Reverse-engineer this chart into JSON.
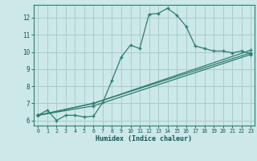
{
  "xlabel": "Humidex (Indice chaleur)",
  "bg_color": "#cce8e8",
  "grid_color": "#aacccc",
  "line_color": "#2e7d6e",
  "xlim": [
    -0.5,
    23.4
  ],
  "ylim": [
    5.7,
    12.75
  ],
  "xticks": [
    0,
    1,
    2,
    3,
    4,
    5,
    6,
    7,
    8,
    9,
    10,
    11,
    12,
    13,
    14,
    15,
    16,
    17,
    18,
    19,
    20,
    21,
    22,
    23
  ],
  "yticks": [
    6,
    7,
    8,
    9,
    10,
    11,
    12
  ],
  "series": [
    {
      "x": [
        0,
        1,
        2,
        3,
        4,
        5,
        6,
        7,
        8,
        9,
        10,
        11,
        12,
        13,
        14,
        15,
        16,
        17,
        18,
        19,
        20,
        21,
        22,
        23
      ],
      "y": [
        6.3,
        6.6,
        6.0,
        6.3,
        6.3,
        6.2,
        6.25,
        7.05,
        8.35,
        9.7,
        10.4,
        10.2,
        12.2,
        12.25,
        12.55,
        12.15,
        11.5,
        10.35,
        10.2,
        10.05,
        10.05,
        9.95,
        10.05,
        9.9
      ]
    },
    {
      "x": [
        0,
        6,
        23
      ],
      "y": [
        6.3,
        7.0,
        10.1
      ]
    },
    {
      "x": [
        0,
        6,
        23
      ],
      "y": [
        6.3,
        7.0,
        9.95
      ]
    },
    {
      "x": [
        0,
        6,
        23
      ],
      "y": [
        6.3,
        6.85,
        9.85
      ]
    }
  ]
}
